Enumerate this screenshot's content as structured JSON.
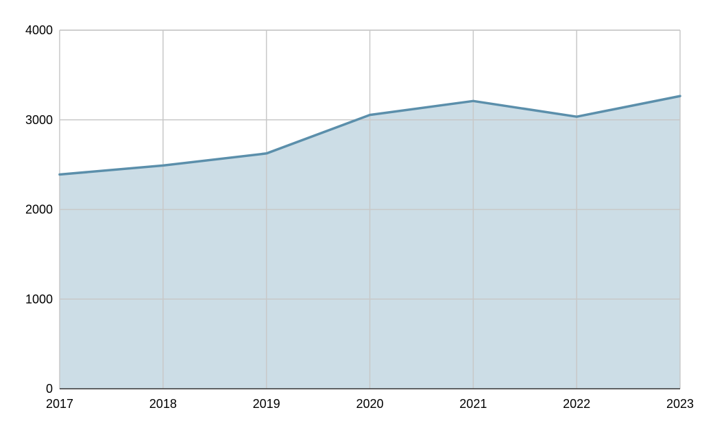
{
  "chart_data": {
    "type": "area",
    "x": [
      "2017",
      "2018",
      "2019",
      "2020",
      "2021",
      "2022",
      "2023"
    ],
    "series": [
      {
        "values": [
          2390,
          2490,
          2625,
          3055,
          3210,
          3035,
          3265
        ]
      }
    ],
    "title": "",
    "xlabel": "",
    "ylabel": "",
    "ylim": [
      0,
      4000
    ],
    "yticks": [
      "0",
      "1000",
      "2000",
      "3000",
      "4000"
    ],
    "grid": true,
    "legend": "none",
    "colors": {
      "line": "#5b8fab",
      "fill": "#ccdde6",
      "grid": "#c8c8c8"
    }
  }
}
